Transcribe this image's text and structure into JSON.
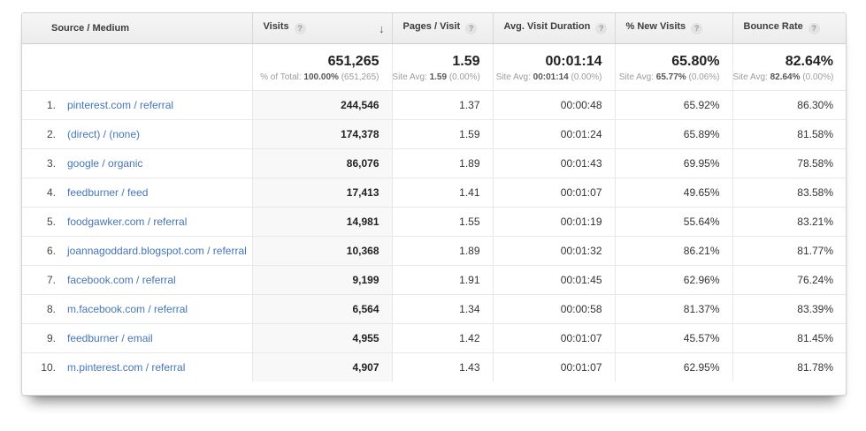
{
  "icons": {
    "help": "?",
    "sort_descending": "↓"
  },
  "colors": {
    "link": "#4576b8",
    "header_bg": "#f0f0f0",
    "sorted_column_bg": "#f8f8f8"
  },
  "columns": {
    "source": {
      "label": "Source / Medium"
    },
    "visits": {
      "label": "Visits"
    },
    "pages": {
      "label": "Pages / Visit"
    },
    "duration": {
      "label": "Avg. Visit Duration"
    },
    "new_visits": {
      "label": "% New Visits"
    },
    "bounce": {
      "label": "Bounce Rate"
    }
  },
  "summary": {
    "visits": {
      "value": "651,265",
      "prefix": "% of Total:",
      "avg": "100.00%",
      "delta": "(651,265)"
    },
    "pages": {
      "value": "1.59",
      "prefix": "Site Avg:",
      "avg": "1.59",
      "delta": "(0.00%)"
    },
    "duration": {
      "value": "00:01:14",
      "prefix": "Site Avg:",
      "avg": "00:01:14",
      "delta": "(0.00%)"
    },
    "new_visits": {
      "value": "65.80%",
      "prefix": "Site Avg:",
      "avg": "65.77%",
      "delta": "(0.06%)"
    },
    "bounce": {
      "value": "82.64%",
      "prefix": "Site Avg:",
      "avg": "82.64%",
      "delta": "(0.00%)"
    }
  },
  "rows": [
    {
      "rank": "1.",
      "source": "pinterest.com / referral",
      "visits": "244,546",
      "pages": "1.37",
      "duration": "00:00:48",
      "new_visits": "65.92%",
      "bounce": "86.30%"
    },
    {
      "rank": "2.",
      "source": "(direct) / (none)",
      "visits": "174,378",
      "pages": "1.59",
      "duration": "00:01:24",
      "new_visits": "65.89%",
      "bounce": "81.58%"
    },
    {
      "rank": "3.",
      "source": "google / organic",
      "visits": "86,076",
      "pages": "1.89",
      "duration": "00:01:43",
      "new_visits": "69.95%",
      "bounce": "78.58%"
    },
    {
      "rank": "4.",
      "source": "feedburner / feed",
      "visits": "17,413",
      "pages": "1.41",
      "duration": "00:01:07",
      "new_visits": "49.65%",
      "bounce": "83.58%"
    },
    {
      "rank": "5.",
      "source": "foodgawker.com / referral",
      "visits": "14,981",
      "pages": "1.55",
      "duration": "00:01:19",
      "new_visits": "55.64%",
      "bounce": "83.21%"
    },
    {
      "rank": "6.",
      "source": "joannagoddard.blogspot.com / referral",
      "visits": "10,368",
      "pages": "1.89",
      "duration": "00:01:32",
      "new_visits": "86.21%",
      "bounce": "81.77%"
    },
    {
      "rank": "7.",
      "source": "facebook.com / referral",
      "visits": "9,199",
      "pages": "1.91",
      "duration": "00:01:45",
      "new_visits": "62.96%",
      "bounce": "76.24%"
    },
    {
      "rank": "8.",
      "source": "m.facebook.com / referral",
      "visits": "6,564",
      "pages": "1.34",
      "duration": "00:00:58",
      "new_visits": "81.37%",
      "bounce": "83.39%"
    },
    {
      "rank": "9.",
      "source": "feedburner / email",
      "visits": "4,955",
      "pages": "1.42",
      "duration": "00:01:07",
      "new_visits": "45.57%",
      "bounce": "81.45%"
    },
    {
      "rank": "10.",
      "source": "m.pinterest.com / referral",
      "visits": "4,907",
      "pages": "1.43",
      "duration": "00:01:07",
      "new_visits": "62.95%",
      "bounce": "81.78%"
    }
  ]
}
